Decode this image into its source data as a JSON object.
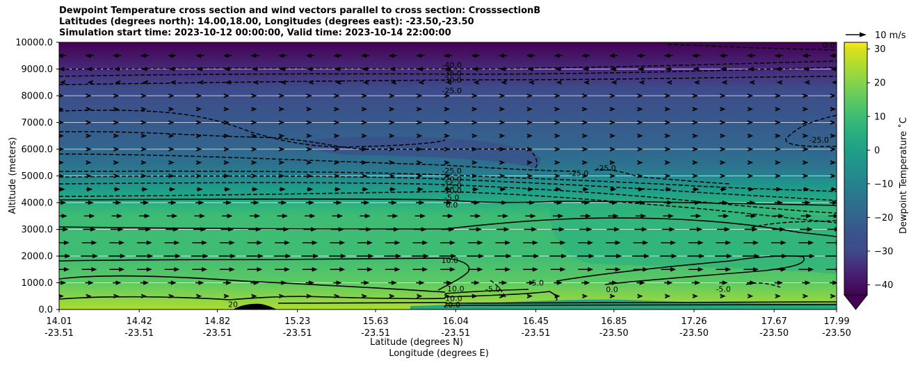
{
  "chart_data": {
    "type": "contour",
    "title_lines": [
      "Dewpoint Temperature cross section and wind vectors parallel to cross section: CrosssectionB",
      "Latitudes (degrees north): 14.00,18.00, Longitudes (degrees east): -23.50,-23.50",
      "Simulation start time: 2023-10-12 00:00:00, Valid time: 2023-10-14 22:00:00"
    ],
    "xlabel_lines": [
      "Latitude (degrees N)",
      "Longitude (degrees E)"
    ],
    "ylabel": "Altitude (meters)",
    "ylim": [
      0,
      10000
    ],
    "xlim": [
      14.01,
      17.99
    ],
    "y_ticks": [
      "0.0",
      "1000.0",
      "2000.0",
      "3000.0",
      "4000.0",
      "5000.0",
      "6000.0",
      "7000.0",
      "8000.0",
      "9000.0",
      "10000.0"
    ],
    "x_ticks": [
      {
        "lat": "14.01",
        "lon": "-23.51"
      },
      {
        "lat": "14.42",
        "lon": "-23.51"
      },
      {
        "lat": "14.82",
        "lon": "-23.51"
      },
      {
        "lat": "15.23",
        "lon": "-23.51"
      },
      {
        "lat": "15.63",
        "lon": "-23.51"
      },
      {
        "lat": "16.04",
        "lon": "-23.51"
      },
      {
        "lat": "16.45",
        "lon": "-23.51"
      },
      {
        "lat": "16.85",
        "lon": "-23.50"
      },
      {
        "lat": "17.26",
        "lon": "-23.50"
      },
      {
        "lat": "17.67",
        "lon": "-23.50"
      },
      {
        "lat": "17.99",
        "lon": "-23.50"
      }
    ],
    "horizontal_gridlines": true,
    "colorbar": {
      "label": "Dewpoint Temperature  ˚C",
      "ticks": [
        "30",
        "20",
        "10",
        "0",
        "−10",
        "−20",
        "−30",
        "−40"
      ],
      "range": [
        -43,
        32
      ],
      "extend": "min",
      "colormap": "viridis"
    },
    "quiver_key": {
      "label": "10 m/s",
      "speed": 10
    },
    "contour_labels": [
      {
        "text": "-40.0",
        "lat": 16.02,
        "z": 9150
      },
      {
        "text": "-35.0",
        "lat": 16.02,
        "z": 8850
      },
      {
        "text": "-30.0",
        "lat": 16.02,
        "z": 8600
      },
      {
        "text": "-25.0",
        "lat": 16.02,
        "z": 8200
      },
      {
        "text": "-25.0",
        "lat": 16.02,
        "z": 5200
      },
      {
        "text": "-20.0",
        "lat": 16.02,
        "z": 4880
      },
      {
        "text": "-15.0",
        "lat": 16.02,
        "z": 4650
      },
      {
        "text": "-10.0",
        "lat": 16.02,
        "z": 4450
      },
      {
        "text": "-5.0",
        "lat": 16.02,
        "z": 4200
      },
      {
        "text": "0.0",
        "lat": 16.02,
        "z": 3920
      },
      {
        "text": "10.0",
        "lat": 16.01,
        "z": 1850
      },
      {
        "text": "20.0",
        "lat": 16.02,
        "z": 180
      },
      {
        "text": "10.0",
        "lat": 16.03,
        "z": 420
      },
      {
        "text": "10.0",
        "lat": 16.04,
        "z": 780
      },
      {
        "text": "-5.0",
        "lat": 16.23,
        "z": 770
      },
      {
        "text": "5.0",
        "lat": 16.46,
        "z": 1000
      },
      {
        "text": "0.0",
        "lat": 16.84,
        "z": 750
      },
      {
        "text": "-5.0",
        "lat": 17.41,
        "z": 770
      },
      {
        "text": "-25.0",
        "lat": 16.67,
        "z": 5100
      },
      {
        "text": "-25.0",
        "lat": 16.81,
        "z": 5300
      },
      {
        "text": "-25.0",
        "lat": 17.9,
        "z": 6350
      },
      {
        "text": "0.0",
        "lat": 17.95,
        "z": 9900
      },
      {
        "text": "20",
        "lat": 14.9,
        "z": 200
      }
    ],
    "wind_rows": [
      {
        "z": 9500,
        "direction": "left",
        "speed_ms": 4
      },
      {
        "z": 9000,
        "direction": "left",
        "speed_ms": 3
      },
      {
        "z": 8500,
        "direction": "left",
        "speed_ms": 2
      },
      {
        "z": 8000,
        "direction": "right",
        "speed_ms": 1
      },
      {
        "z": 7500,
        "direction": "right",
        "speed_ms": 1
      },
      {
        "z": 7000,
        "direction": "right",
        "speed_ms": 1
      },
      {
        "z": 6500,
        "direction": "right",
        "speed_ms": 2
      },
      {
        "z": 6000,
        "direction": "right",
        "speed_ms": 2
      },
      {
        "z": 5500,
        "direction": "right",
        "speed_ms": 2
      },
      {
        "z": 5000,
        "direction": "right",
        "speed_ms": 2
      },
      {
        "z": 4500,
        "direction": "right",
        "speed_ms": 3
      },
      {
        "z": 4000,
        "direction": "right",
        "speed_ms": 4
      },
      {
        "z": 3500,
        "direction": "right",
        "speed_ms": 5
      },
      {
        "z": 3000,
        "direction": "right",
        "speed_ms": 6
      },
      {
        "z": 2500,
        "direction": "right",
        "speed_ms": 7
      },
      {
        "z": 2000,
        "direction": "right",
        "speed_ms": 8
      },
      {
        "z": 1500,
        "direction": "right",
        "speed_ms": 7
      },
      {
        "z": 1000,
        "direction": "right",
        "speed_ms": 4
      },
      {
        "z": 500,
        "direction": "right",
        "speed_ms": 2
      }
    ],
    "colors": {
      "v_m40": "#440154",
      "v_m35": "#472a7a",
      "v_m30": "#3e4a89",
      "v_m25": "#3b528b",
      "v_m20": "#33638d",
      "v_m15": "#2c728e",
      "v_m10": "#26828e",
      "v_m5": "#21918c",
      "v_0": "#1fa088",
      "v_5": "#28ae80",
      "v_10": "#3fbc73",
      "v_15": "#5ec962",
      "v_20": "#84d44b",
      "v_25": "#addc30",
      "v_30": "#d8e219",
      "v_35": "#fde725"
    }
  }
}
